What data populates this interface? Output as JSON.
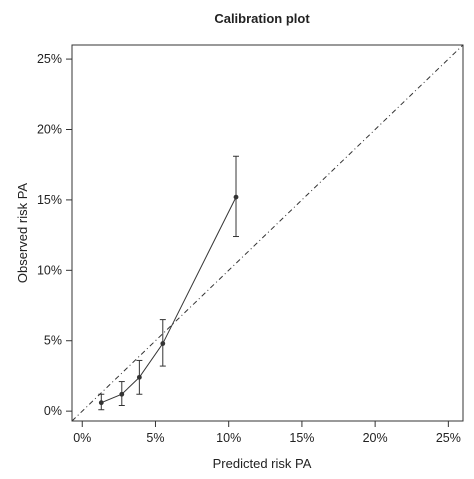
{
  "chart_data": {
    "type": "line",
    "title": "Calibration plot",
    "xlabel": "Predicted risk PA",
    "ylabel": "Observed risk PA",
    "xlim": [
      -0.007,
      0.26
    ],
    "ylim": [
      -0.007,
      0.26
    ],
    "x_ticks": [
      0,
      0.05,
      0.1,
      0.15,
      0.2,
      0.25
    ],
    "x_tick_labels": [
      "0%",
      "5%",
      "10%",
      "15%",
      "20%",
      "25%"
    ],
    "y_ticks": [
      0,
      0.05,
      0.1,
      0.15,
      0.2,
      0.25
    ],
    "y_tick_labels": [
      "0%",
      "5%",
      "10%",
      "15%",
      "20%",
      "25%"
    ],
    "grid": false,
    "reference_line": {
      "type": "identity",
      "style": "dash-dot"
    },
    "series": [
      {
        "points": [
          {
            "x": 0.013,
            "y": 0.006,
            "y_low": 0.001,
            "y_high": 0.012
          },
          {
            "x": 0.027,
            "y": 0.012,
            "y_low": 0.004,
            "y_high": 0.021
          },
          {
            "x": 0.039,
            "y": 0.024,
            "y_low": 0.012,
            "y_high": 0.036
          },
          {
            "x": 0.055,
            "y": 0.048,
            "y_low": 0.032,
            "y_high": 0.065
          },
          {
            "x": 0.105,
            "y": 0.152,
            "y_low": 0.124,
            "y_high": 0.181
          }
        ]
      }
    ],
    "colors": {
      "line": "#333333",
      "axis": "#333333",
      "text": "#222222"
    }
  }
}
